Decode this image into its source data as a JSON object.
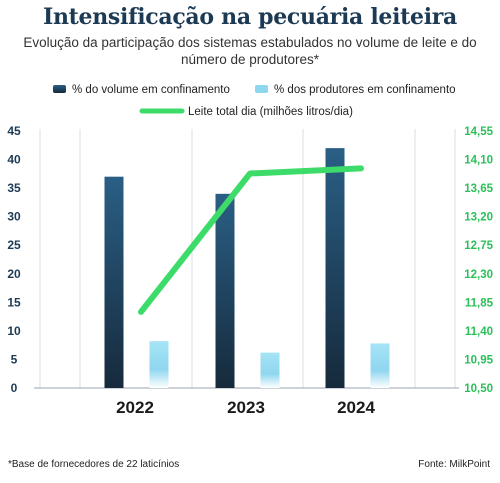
{
  "title": "Intensificação na pecuária leiteira",
  "subtitle": "Evolução da participação dos sistemas estabulados no volume de leite e do número de produtores*",
  "footnote": "*Base de fornecedores de 22 laticínios",
  "source": "Fonte: MilkPoint",
  "colors": {
    "volume_bar": "#1f4a6e",
    "producers_bar": "#8fd6ef",
    "line": "#3ddc6a",
    "right_axis": "#2bbf5a",
    "left_axis": "#1d3a55",
    "grid": "#d8dde2"
  },
  "chart_data": {
    "type": "bar",
    "categories": [
      "2022",
      "2023",
      "2024"
    ],
    "series": [
      {
        "name": "% do volume em confinamento",
        "type": "bar",
        "axis": "left",
        "values": [
          37,
          34,
          42
        ]
      },
      {
        "name": "% dos produtores em confinamento",
        "type": "bar",
        "axis": "left",
        "values": [
          8.2,
          6.2,
          7.8
        ]
      },
      {
        "name": "Leite total dia (milhões litros/dia)",
        "type": "line",
        "axis": "right",
        "values": [
          11.7,
          13.88,
          13.96
        ]
      }
    ],
    "y_left": {
      "min": 0,
      "max": 45,
      "ticks": [
        "0",
        "5",
        "10",
        "15",
        "20",
        "25",
        "30",
        "35",
        "40",
        "45"
      ]
    },
    "y_right": {
      "min": 10.5,
      "max": 14.55,
      "ticks": [
        "10,50",
        "10,95",
        "11,40",
        "11,85",
        "12,30",
        "12,75",
        "13,20",
        "13,65",
        "14,10",
        "14,55"
      ]
    },
    "grid": "vertical",
    "legend": "top"
  }
}
